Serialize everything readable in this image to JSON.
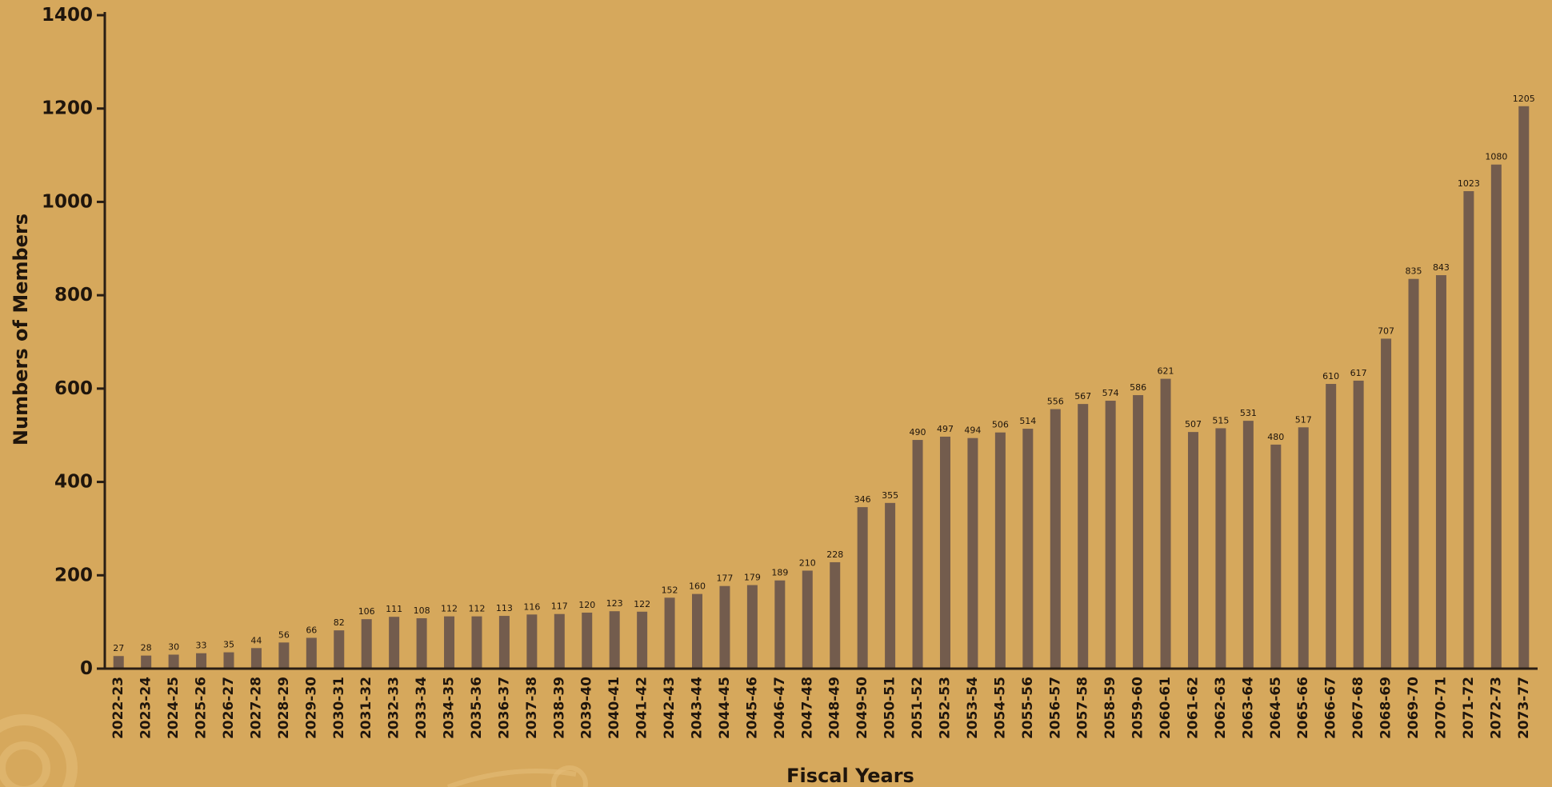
{
  "chart_data": {
    "type": "bar",
    "title": "",
    "xlabel": "Fiscal Years",
    "ylabel": "Numbers of Members",
    "ylim": [
      0,
      1400
    ],
    "yticks": [
      0,
      200,
      400,
      600,
      800,
      1000,
      1200,
      1400
    ],
    "grid": false,
    "categories": [
      "2022-23",
      "2023-24",
      "2024-25",
      "2025-26",
      "2026-27",
      "2027-28",
      "2028-29",
      "2029-30",
      "2030-31",
      "2031-32",
      "2032-33",
      "2033-34",
      "2034-35",
      "2035-36",
      "2036-37",
      "2037-38",
      "2038-39",
      "2039-40",
      "2040-41",
      "2041-42",
      "2042-43",
      "2043-44",
      "2044-45",
      "2045-46",
      "2046-47",
      "2047-48",
      "2048-49",
      "2049-50",
      "2050-51",
      "2051-52",
      "2052-53",
      "2053-54",
      "2054-55",
      "2055-56",
      "2056-57",
      "2057-58",
      "2058-59",
      "2059-60",
      "2060-61",
      "2061-62",
      "2062-63",
      "2063-64",
      "2064-65",
      "2065-66",
      "2066-67",
      "2067-68",
      "2068-69",
      "2069-70",
      "2070-71",
      "2071-72",
      "2072-73",
      "2073-77"
    ],
    "values": [
      27,
      28,
      30,
      33,
      35,
      44,
      56,
      66,
      82,
      106,
      111,
      108,
      112,
      112,
      113,
      116,
      117,
      120,
      123,
      122,
      152,
      160,
      177,
      179,
      189,
      210,
      228,
      346,
      355,
      490,
      497,
      494,
      506,
      514,
      556,
      567,
      574,
      586,
      621,
      507,
      515,
      531,
      480,
      517,
      610,
      617,
      707,
      835,
      843,
      1023,
      1080,
      1205
    ],
    "colors": {
      "bar": "#735c4d",
      "background": "#d6a85c"
    }
  }
}
